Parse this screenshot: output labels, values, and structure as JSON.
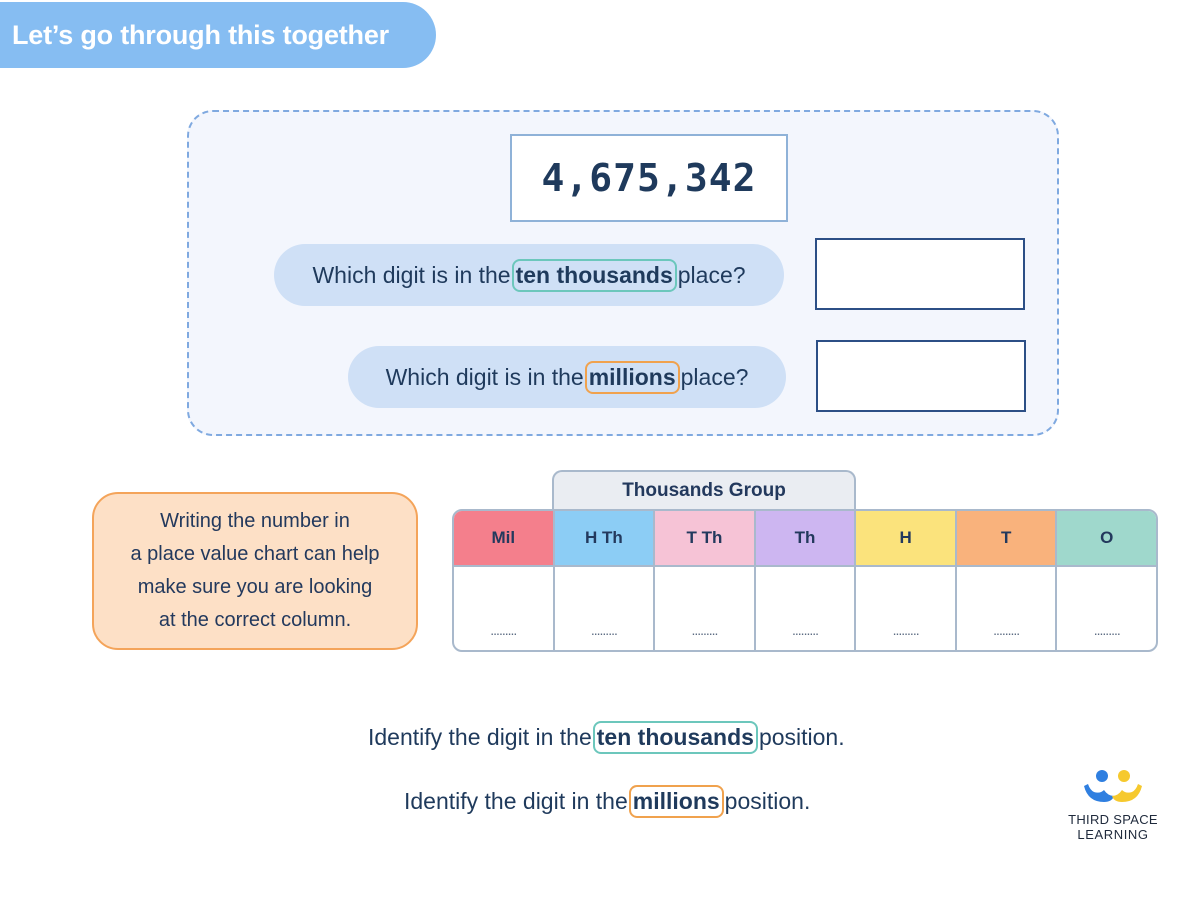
{
  "header": {
    "title": "Let’s go through this together"
  },
  "question_panel": {
    "number": "4,675,342",
    "questions": [
      {
        "before": "Which digit is in the",
        "highlight": "ten thousands",
        "after": "place?",
        "answer": ""
      },
      {
        "before": "Which digit is in the",
        "highlight": "millions",
        "after": "place?",
        "answer": ""
      }
    ]
  },
  "tip": {
    "lines": [
      "Writing the number in",
      "a place value chart can help",
      "make sure you are looking",
      "at the correct column."
    ]
  },
  "place_value_chart": {
    "group_label": "Thousands Group",
    "columns": [
      {
        "label": "Mil",
        "color": "#f47f8c",
        "value": "........."
      },
      {
        "label": "H Th",
        "color": "#8ccdf5",
        "value": "........."
      },
      {
        "label": "T Th",
        "color": "#f6c3d6",
        "value": "........."
      },
      {
        "label": "Th",
        "color": "#cdb6f1",
        "value": "........."
      },
      {
        "label": "H",
        "color": "#fbe37c",
        "value": "........."
      },
      {
        "label": "T",
        "color": "#f9b27c",
        "value": "........."
      },
      {
        "label": "O",
        "color": "#9fd8cc",
        "value": "........."
      }
    ]
  },
  "instructions": [
    {
      "before": "Identify the digit in the",
      "highlight": "ten thousands",
      "after": "position."
    },
    {
      "before": "Identify the digit in the",
      "highlight": "millions",
      "after": "position."
    }
  ],
  "logo": {
    "line1": "THIRD SPACE",
    "line2": "LEARNING",
    "icon": "people-icon"
  },
  "colors": {
    "banner": "#86bdf2",
    "highlight_teal": "#6cc7bc",
    "highlight_orange": "#f0a24e",
    "tip_bg": "#fde0c6",
    "logo_blue": "#2f7fe0",
    "logo_yellow": "#f6c92e"
  }
}
